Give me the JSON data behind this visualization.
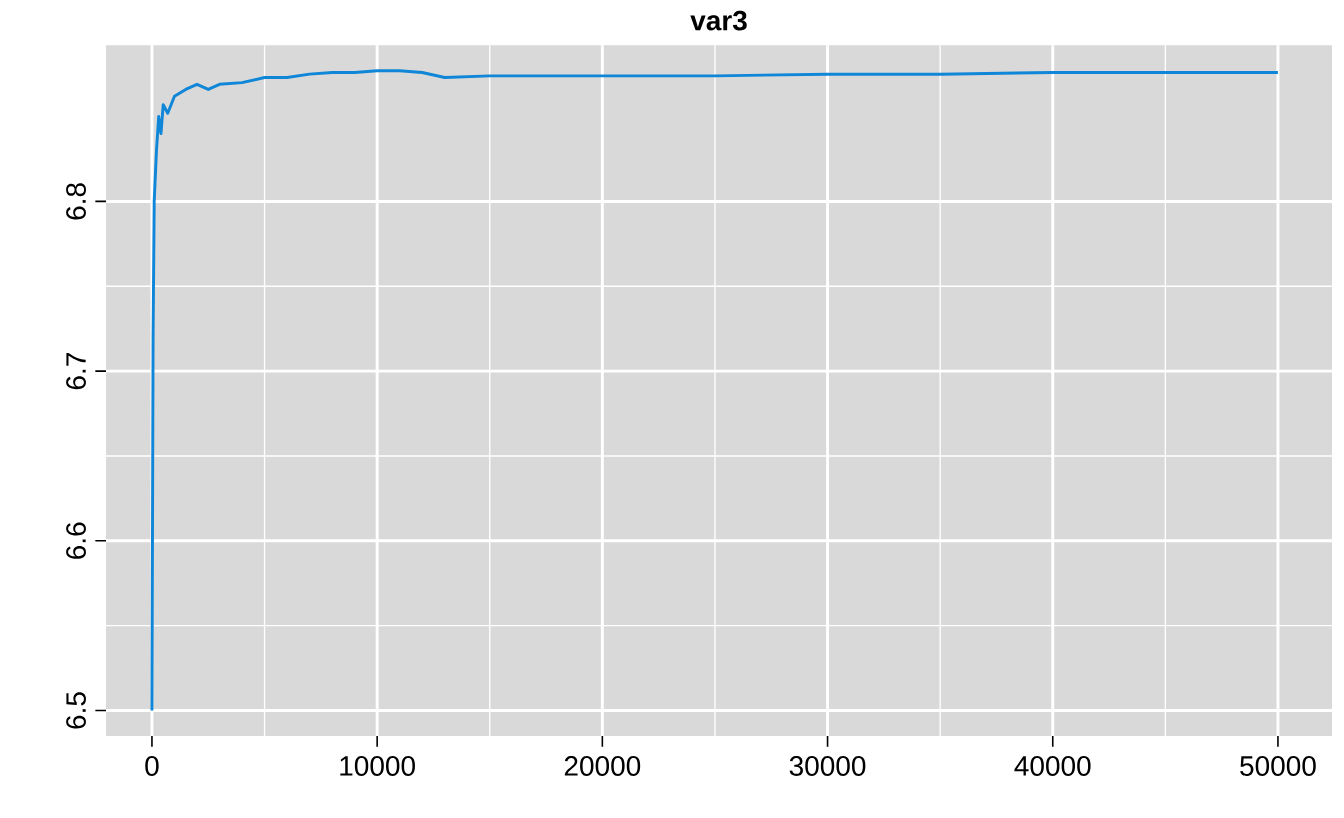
{
  "chart_data": {
    "type": "line",
    "title": "var3",
    "x": [
      0,
      50,
      100,
      200,
      300,
      400,
      500,
      700,
      1000,
      1500,
      2000,
      2500,
      3000,
      4000,
      5000,
      6000,
      7000,
      8000,
      9000,
      10000,
      11000,
      12000,
      13000,
      15000,
      20000,
      25000,
      30000,
      35000,
      40000,
      45000,
      50000
    ],
    "series": [
      {
        "color": "#0f86d8",
        "values": [
          6.5,
          6.72,
          6.8,
          6.83,
          6.85,
          6.84,
          6.857,
          6.852,
          6.862,
          6.866,
          6.869,
          6.866,
          6.869,
          6.87,
          6.873,
          6.873,
          6.875,
          6.876,
          6.876,
          6.877,
          6.877,
          6.876,
          6.873,
          6.874,
          6.874,
          6.874,
          6.875,
          6.875,
          6.876,
          6.876,
          6.876
        ]
      }
    ],
    "xlim": [
      -2040,
      52400
    ],
    "ylim": [
      6.485,
      6.892
    ],
    "xticks": [
      0,
      10000,
      20000,
      30000,
      40000,
      50000
    ],
    "yticks": [
      6.5,
      6.6,
      6.7,
      6.8
    ],
    "grid": true,
    "marker": "none",
    "line_style": "solid"
  }
}
